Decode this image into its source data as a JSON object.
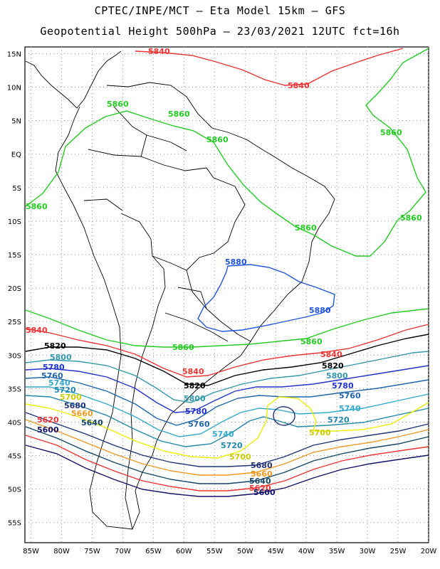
{
  "header": {
    "line1": "CPTEC/INPE/MCT –  Eta Model 15km – GFS",
    "line2": "Geopotential Height 500hPa – 23/03/2021 12UTC fct=16h"
  },
  "map": {
    "projection": "lat-lon",
    "lon_range": [
      -86,
      -20
    ],
    "lat_range": [
      -58,
      16
    ],
    "grid": true,
    "lat_ticks": [
      {
        "value": 15,
        "label": "15N"
      },
      {
        "value": 10,
        "label": "10N"
      },
      {
        "value": 5,
        "label": "5N"
      },
      {
        "value": 0,
        "label": "EQ"
      },
      {
        "value": -5,
        "label": "5S"
      },
      {
        "value": -10,
        "label": "10S"
      },
      {
        "value": -15,
        "label": "15S"
      },
      {
        "value": -20,
        "label": "20S"
      },
      {
        "value": -25,
        "label": "25S"
      },
      {
        "value": -30,
        "label": "30S"
      },
      {
        "value": -35,
        "label": "35S"
      },
      {
        "value": -40,
        "label": "40S"
      },
      {
        "value": -45,
        "label": "45S"
      },
      {
        "value": -50,
        "label": "50S"
      },
      {
        "value": -55,
        "label": "55S"
      }
    ],
    "lon_ticks": [
      {
        "value": -85,
        "label": "85W"
      },
      {
        "value": -80,
        "label": "80W"
      },
      {
        "value": -75,
        "label": "75W"
      },
      {
        "value": -70,
        "label": "70W"
      },
      {
        "value": -65,
        "label": "65W"
      },
      {
        "value": -60,
        "label": "60W"
      },
      {
        "value": -55,
        "label": "55W"
      },
      {
        "value": -50,
        "label": "50W"
      },
      {
        "value": -45,
        "label": "45W"
      },
      {
        "value": -40,
        "label": "40W"
      },
      {
        "value": -35,
        "label": "35W"
      },
      {
        "value": -30,
        "label": "30W"
      },
      {
        "value": -25,
        "label": "25W"
      },
      {
        "value": -20,
        "label": "20W"
      }
    ],
    "contours": [
      {
        "level": "5880",
        "color": "#2255dd"
      },
      {
        "level": "5860",
        "color": "#22cc22"
      },
      {
        "level": "5840",
        "color": "#ee3333"
      },
      {
        "level": "5820",
        "color": "#000000"
      },
      {
        "level": "5800",
        "color": "#3399aa"
      },
      {
        "level": "5780",
        "color": "#2233cc"
      },
      {
        "level": "5760",
        "color": "#2266aa"
      },
      {
        "level": "5740",
        "color": "#33aacc"
      },
      {
        "level": "5720",
        "color": "#2288aa"
      },
      {
        "level": "5700",
        "color": "#eeee00"
      },
      {
        "level": "5680",
        "color": "#223377"
      },
      {
        "level": "5660",
        "color": "#ee9922"
      },
      {
        "level": "5640",
        "color": "#114466"
      },
      {
        "level": "5620",
        "color": "#ee3333"
      },
      {
        "level": "5600",
        "color": "#111166"
      }
    ]
  }
}
